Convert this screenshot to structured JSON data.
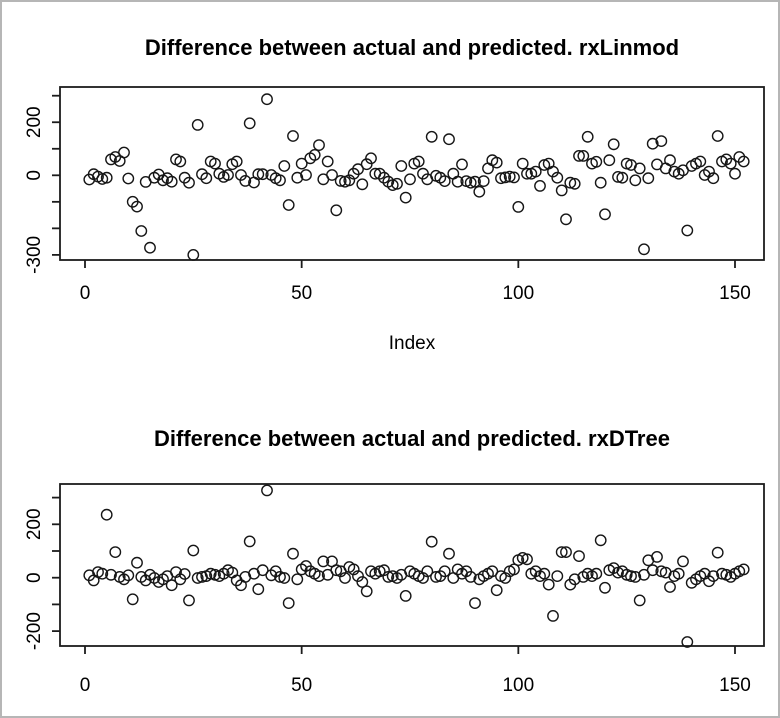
{
  "window": {
    "background_color": "#ffffff",
    "border_color": "#b6b6b6",
    "point_color": "#161616",
    "axis_color": "#1c1c1c"
  },
  "chart_data": [
    {
      "type": "scatter",
      "title": "Difference between actual and predicted. rxLinmod",
      "xlabel": "Index",
      "ylabel": "",
      "point_symbol": "open-circle",
      "grid": false,
      "legend": "none",
      "x_start_index": 1,
      "x_axis": {
        "tick_values": [
          0,
          50,
          100,
          150
        ],
        "tick_labels": [
          "0",
          "50",
          "100",
          "150"
        ],
        "range": [
          -5,
          157
        ]
      },
      "y_axis": {
        "tick_values": [
          300,
          200,
          100,
          0,
          -100,
          -200,
          -300
        ],
        "labeled_ticks": [
          {
            "value": 200,
            "label": "200"
          },
          {
            "value": 0,
            "label": "0"
          },
          {
            "value": -300,
            "label": "-300"
          }
        ],
        "range": [
          -320,
          310
        ]
      },
      "values": [
        -16,
        4,
        -5,
        -14,
        -9,
        60,
        69,
        54,
        86,
        -12,
        -100,
        -118,
        -210,
        -25,
        -273,
        -9,
        3,
        -19,
        -11,
        -24,
        60,
        52,
        -9,
        -28,
        -300,
        190,
        4,
        -11,
        52,
        44,
        6,
        -6,
        1,
        42,
        52,
        1,
        -21,
        196,
        -27,
        4,
        4,
        287,
        1,
        -11,
        -19,
        35,
        -112,
        148,
        -9,
        44,
        1,
        64,
        77,
        114,
        -15,
        52,
        1,
        -132,
        -21,
        -24,
        -19,
        6,
        23,
        -34,
        42,
        64,
        6,
        6,
        -9,
        -24,
        -37,
        -32,
        35,
        -84,
        -15,
        44,
        52,
        6,
        -15,
        145,
        -2,
        -9,
        -22,
        136,
        6,
        -24,
        41,
        -22,
        -28,
        -24,
        -62,
        -22,
        26,
        57,
        48,
        -11,
        -8,
        -5,
        -8,
        -119,
        44,
        6,
        6,
        14,
        -40,
        39,
        44,
        14,
        -9,
        -57,
        -166,
        -28,
        -32,
        73,
        73,
        145,
        44,
        51,
        -28,
        -147,
        57,
        117,
        -6,
        -9,
        44,
        39,
        -19,
        26,
        -279,
        -11,
        119,
        41,
        129,
        26,
        57,
        14,
        6,
        19,
        -208,
        35,
        44,
        52,
        1,
        14,
        -11,
        148,
        52,
        60,
        44,
        6,
        69,
        52
      ]
    },
    {
      "type": "scatter",
      "title": "Difference between actual and predicted. rxDTree",
      "xlabel": "",
      "ylabel": "",
      "point_symbol": "open-circle",
      "grid": false,
      "legend": "none",
      "x_start_index": 1,
      "x_axis": {
        "tick_values": [
          0,
          50,
          100,
          150
        ],
        "tick_labels": [
          "0",
          "50",
          "100",
          "150"
        ],
        "range": [
          -5,
          157
        ]
      },
      "y_axis": {
        "tick_values": [
          300,
          200,
          100,
          0,
          -100,
          -200
        ],
        "labeled_ticks": [
          {
            "value": 200,
            "label": "200"
          },
          {
            "value": 0,
            "label": "0"
          },
          {
            "value": -200,
            "label": "-200"
          }
        ],
        "range": [
          -255,
          350
        ]
      },
      "values": [
        9,
        -10,
        21,
        15,
        236,
        11,
        96,
        3,
        -6,
        9,
        -81,
        56,
        3,
        -10,
        11,
        -1,
        -16,
        -6,
        6,
        -28,
        21,
        -6,
        14,
        -85,
        102,
        -1,
        3,
        6,
        15,
        11,
        6,
        15,
        28,
        19,
        -10,
        -28,
        3,
        136,
        15,
        -43,
        28,
        327,
        9,
        24,
        3,
        -1,
        -95,
        90,
        -6,
        31,
        44,
        24,
        15,
        6,
        61,
        11,
        61,
        28,
        24,
        -1,
        40,
        31,
        6,
        -16,
        -51,
        24,
        15,
        24,
        28,
        3,
        6,
        -1,
        11,
        -68,
        24,
        15,
        6,
        -1,
        24,
        135,
        3,
        6,
        24,
        90,
        -1,
        31,
        15,
        24,
        3,
        -95,
        -6,
        6,
        15,
        24,
        -47,
        6,
        -1,
        24,
        31,
        66,
        74,
        69,
        15,
        24,
        6,
        15,
        -26,
        -143,
        6,
        96,
        96,
        -26,
        -6,
        81,
        3,
        15,
        6,
        15,
        140,
        -38,
        28,
        36,
        19,
        24,
        11,
        6,
        3,
        -85,
        11,
        65,
        28,
        78,
        24,
        19,
        -35,
        6,
        15,
        61,
        -241,
        -19,
        -6,
        6,
        15,
        -13,
        6,
        94,
        15,
        11,
        3,
        15,
        24,
        31
      ]
    }
  ]
}
